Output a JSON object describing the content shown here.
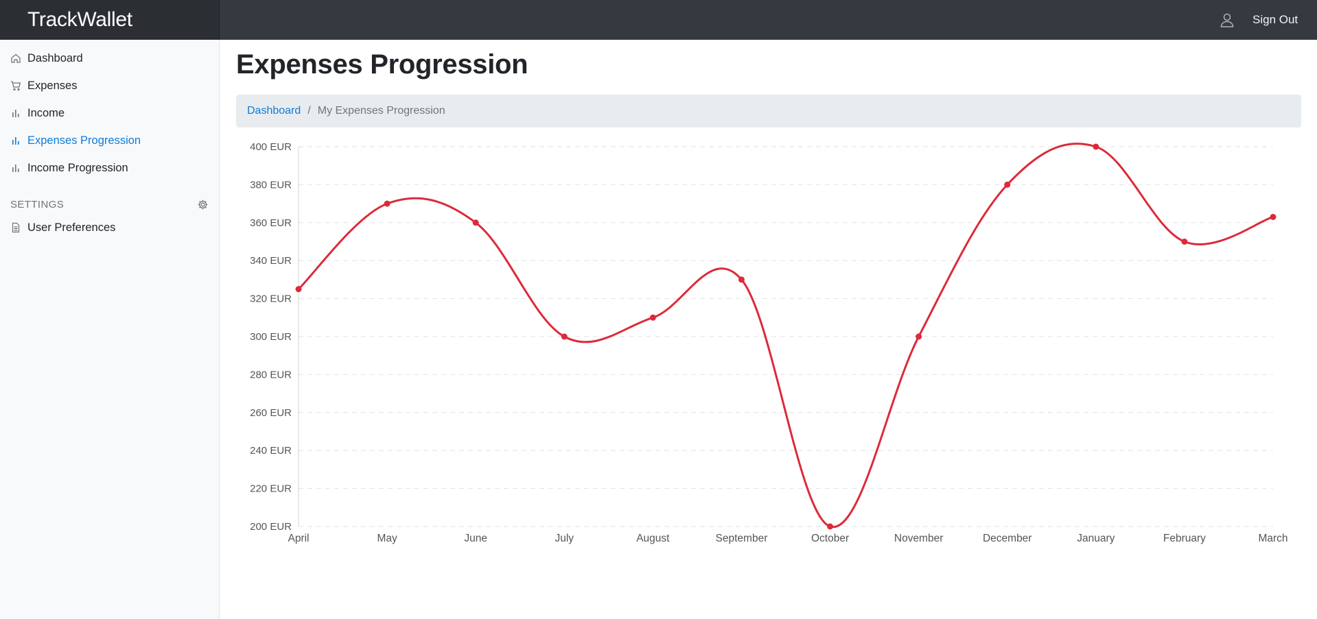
{
  "app": {
    "title": "TrackWallet"
  },
  "header": {
    "sign_out_label": "Sign Out",
    "user_icon": "user-icon"
  },
  "sidebar": {
    "items": [
      {
        "label": "Dashboard",
        "icon": "home-icon",
        "active": false
      },
      {
        "label": "Expenses",
        "icon": "cart-icon",
        "active": false
      },
      {
        "label": "Income",
        "icon": "bar-chart-icon",
        "active": false
      },
      {
        "label": "Expenses Progression",
        "icon": "bar-chart-icon",
        "active": true
      },
      {
        "label": "Income Progression",
        "icon": "bar-chart-icon",
        "active": false
      }
    ],
    "settings": {
      "heading": "SETTINGS",
      "gear_icon": "gear-icon",
      "items": [
        {
          "label": "User Preferences",
          "icon": "file-icon"
        }
      ]
    }
  },
  "main": {
    "title": "Expenses Progression",
    "breadcrumb": {
      "link": "Dashboard",
      "separator": "/",
      "current": "My Expenses Progression"
    }
  },
  "colors": {
    "accent": "#0d7bdb",
    "line": "#dc2a3a",
    "topbar": "#343a40"
  },
  "chart_data": {
    "type": "line",
    "categories": [
      "April",
      "May",
      "June",
      "July",
      "August",
      "September",
      "October",
      "November",
      "December",
      "January",
      "February",
      "March"
    ],
    "series": [
      {
        "values": [
          325,
          370,
          360,
          300,
          310,
          330,
          200,
          300,
          380,
          400,
          350,
          363
        ]
      }
    ],
    "ylim": [
      200,
      400
    ],
    "yticks": [
      200,
      220,
      240,
      260,
      280,
      300,
      320,
      340,
      360,
      380,
      400
    ],
    "y_unit_suffix": " EUR",
    "grid": true,
    "curve": "smooth",
    "legend": "none"
  }
}
